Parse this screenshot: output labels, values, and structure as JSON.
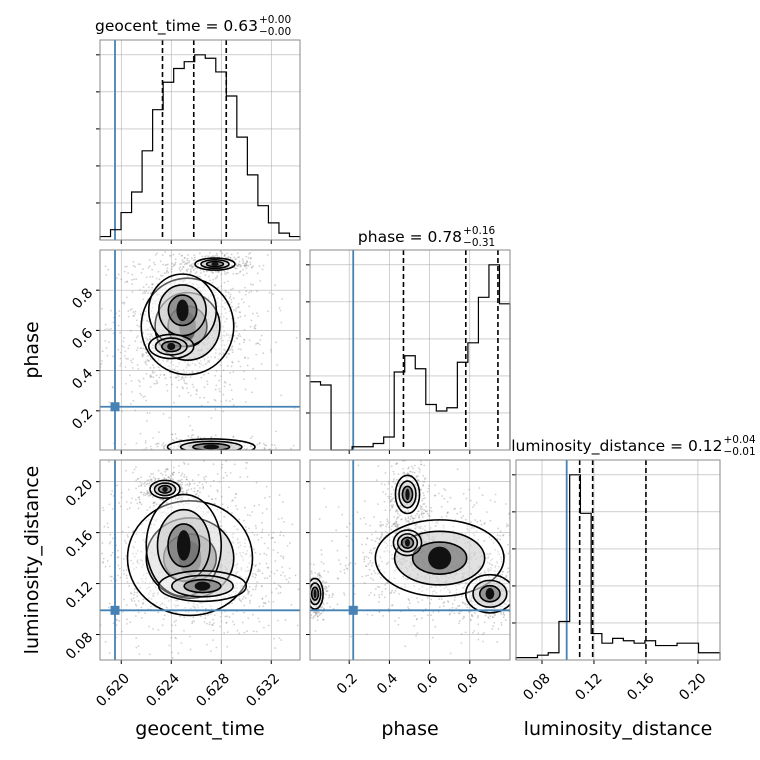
{
  "chart_data": {
    "type": "corner",
    "parameters": [
      "geocent_time",
      "phase",
      "luminosity_distance"
    ],
    "axis_labels": [
      "geocent_time",
      "phase",
      "luminosity_distance"
    ],
    "truth": {
      "geocent_time": 0.6195,
      "phase": 0.22,
      "luminosity_distance": 0.099
    },
    "truth_color": "#4682b4",
    "ranges": {
      "geocent_time": [
        0.6183,
        0.6343
      ],
      "phase": [
        0.005,
        1.0
      ],
      "luminosity_distance": [
        0.06,
        0.217
      ]
    },
    "ticks": {
      "geocent_time": {
        "values": [
          0.62,
          0.624,
          0.628,
          0.632
        ],
        "labels": [
          "0.620",
          "0.624",
          "0.628",
          "0.632"
        ]
      },
      "phase": {
        "values": [
          0.2,
          0.4,
          0.6,
          0.8
        ],
        "labels": [
          "0.2",
          "0.4",
          "0.6",
          "0.8"
        ]
      },
      "luminosity_distance": {
        "values": [
          0.08,
          0.12,
          0.16,
          0.2
        ],
        "labels": [
          "0.08",
          "0.12",
          "0.16",
          "0.20"
        ]
      }
    },
    "titles": [
      {
        "param": "geocent_time",
        "prefix": "geocent_time = 0.63",
        "plus": "+0.00",
        "minus": "−0.00"
      },
      {
        "param": "phase",
        "prefix": "phase = 0.78",
        "plus": "+0.16",
        "minus": "−0.31"
      },
      {
        "param": "luminosity_distance",
        "prefix": "luminosity_distance = 0.12",
        "plus": "+0.04",
        "minus": "−0.01"
      }
    ],
    "histograms": {
      "geocent_time": {
        "edges": [
          0.6183,
          0.6343
        ],
        "counts": [
          1,
          3,
          8,
          14,
          26,
          38,
          46,
          50,
          52,
          54,
          53,
          49,
          42,
          30,
          19,
          10,
          5,
          2,
          1
        ],
        "quantiles": [
          0.6233,
          0.6258,
          0.6284
        ]
      },
      "phase": {
        "edges": [
          0.005,
          1.0
        ],
        "counts": [
          21,
          20,
          0,
          0,
          1,
          1,
          2,
          4,
          24,
          29,
          25,
          14,
          12,
          13,
          27,
          33,
          47,
          57,
          45
        ],
        "quantiles": [
          0.47,
          0.78,
          0.94
        ]
      },
      "luminosity_distance": {
        "edges": [
          0.06,
          0.217
        ],
        "counts": [
          1,
          1,
          2,
          3,
          16,
          77,
          61,
          11,
          7,
          9,
          8,
          7,
          8,
          6,
          6,
          7,
          7,
          3,
          3
        ],
        "quantiles": [
          0.109,
          0.119,
          0.16
        ]
      }
    },
    "contours": {
      "phase_vs_geocent_time": [
        {
          "cx": 0.6253,
          "cy": 0.62,
          "rx": 0.0037,
          "ry": 0.24
        },
        {
          "cx": 0.6249,
          "cy": 0.7,
          "rx": 0.0027,
          "ry": 0.18
        },
        {
          "cx": 0.624,
          "cy": 0.52,
          "rx": 0.0018,
          "ry": 0.06
        },
        {
          "cx": 0.6275,
          "cy": 0.93,
          "rx": 0.0016,
          "ry": 0.03
        },
        {
          "cx": 0.6272,
          "cy": 0.02,
          "rx": 0.0035,
          "ry": 0.04
        }
      ],
      "luminosity_distance_vs_geocent_time": [
        {
          "cx": 0.6255,
          "cy": 0.14,
          "rx": 0.005,
          "ry": 0.045
        },
        {
          "cx": 0.625,
          "cy": 0.15,
          "rx": 0.003,
          "ry": 0.04
        },
        {
          "cx": 0.6265,
          "cy": 0.118,
          "rx": 0.0035,
          "ry": 0.012
        },
        {
          "cx": 0.6235,
          "cy": 0.194,
          "rx": 0.0012,
          "ry": 0.007
        }
      ],
      "luminosity_distance_vs_phase": [
        {
          "cx": 0.65,
          "cy": 0.14,
          "rx": 0.32,
          "ry": 0.03
        },
        {
          "cx": 0.49,
          "cy": 0.19,
          "rx": 0.06,
          "ry": 0.015
        },
        {
          "cx": 0.49,
          "cy": 0.152,
          "rx": 0.07,
          "ry": 0.01
        },
        {
          "cx": 0.9,
          "cy": 0.112,
          "rx": 0.12,
          "ry": 0.015
        },
        {
          "cx": 0.03,
          "cy": 0.112,
          "rx": 0.04,
          "ry": 0.012
        }
      ]
    }
  }
}
